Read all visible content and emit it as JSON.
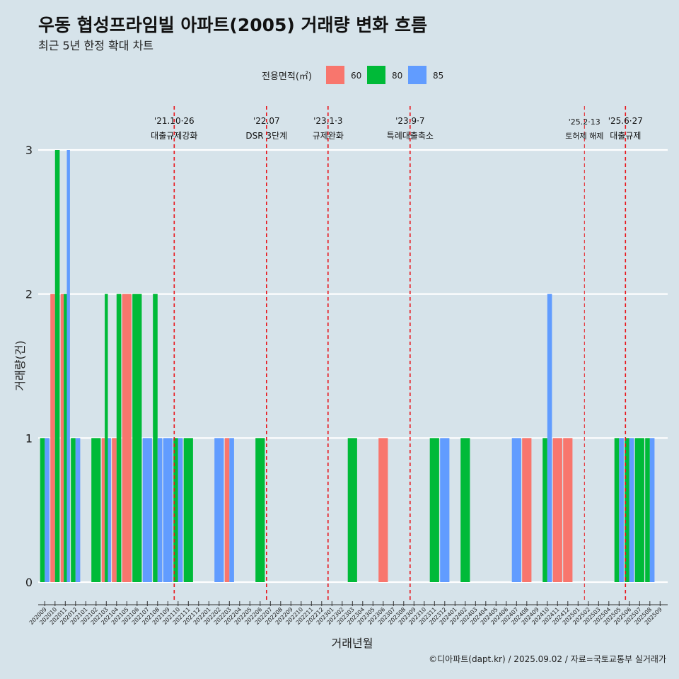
{
  "header": {
    "title": "우동 협성프라임빌 아파트(2005) 거래량 변화 흐름",
    "subtitle": "최근 5년 한정 확대 차트"
  },
  "legend": {
    "title": "전용면적(㎡)",
    "items": [
      {
        "label": "60",
        "color": "#F8766D"
      },
      {
        "label": "80",
        "color": "#00BA38"
      },
      {
        "label": "85",
        "color": "#619CFF"
      }
    ]
  },
  "caption": "©디아파트(dapt.kr) / 2025.09.02 / 자료=국토교통부 실거래가",
  "chart_data": {
    "type": "bar",
    "xlabel": "거래년월",
    "ylabel": "거래량(건)",
    "ylim": [
      0,
      3
    ],
    "yticks": [
      0,
      1,
      2,
      3
    ],
    "grid": true,
    "legend_position": "top",
    "categories": [
      "202009",
      "202010",
      "202011",
      "202012",
      "202101",
      "202102",
      "202103",
      "202104",
      "202105",
      "202106",
      "202107",
      "202108",
      "202109",
      "202110",
      "202111",
      "202112",
      "202201",
      "202202",
      "202203",
      "202204",
      "202205",
      "202206",
      "202207",
      "202208",
      "202209",
      "202210",
      "202211",
      "202212",
      "202301",
      "202302",
      "202303",
      "202304",
      "202305",
      "202306",
      "202307",
      "202308",
      "202309",
      "202310",
      "202311",
      "202312",
      "202401",
      "202402",
      "202403",
      "202404",
      "202405",
      "202406",
      "202407",
      "202408",
      "202409",
      "202410",
      "202411",
      "202412",
      "202501",
      "202502",
      "202503",
      "202504",
      "202505",
      "202506",
      "202507",
      "202508",
      "202509"
    ],
    "bars": [
      {
        "month": "202009",
        "area": "80",
        "value": 1
      },
      {
        "month": "202009",
        "area": "85",
        "value": 1
      },
      {
        "month": "202010",
        "area": "60",
        "value": 2
      },
      {
        "month": "202010",
        "area": "80",
        "value": 3
      },
      {
        "month": "202011",
        "area": "60",
        "value": 2
      },
      {
        "month": "202011",
        "area": "80",
        "value": 2
      },
      {
        "month": "202011",
        "area": "85",
        "value": 3
      },
      {
        "month": "202012",
        "area": "80",
        "value": 1
      },
      {
        "month": "202012",
        "area": "85",
        "value": 1
      },
      {
        "month": "202102",
        "area": "80",
        "value": 1
      },
      {
        "month": "202103",
        "area": "60",
        "value": 1
      },
      {
        "month": "202103",
        "area": "80",
        "value": 2
      },
      {
        "month": "202103",
        "area": "85",
        "value": 1
      },
      {
        "month": "202104",
        "area": "60",
        "value": 1
      },
      {
        "month": "202104",
        "area": "80",
        "value": 2
      },
      {
        "month": "202105",
        "area": "60",
        "value": 2
      },
      {
        "month": "202106",
        "area": "80",
        "value": 2
      },
      {
        "month": "202107",
        "area": "85",
        "value": 1
      },
      {
        "month": "202108",
        "area": "80",
        "value": 2
      },
      {
        "month": "202108",
        "area": "85",
        "value": 1
      },
      {
        "month": "202109",
        "area": "85",
        "value": 1
      },
      {
        "month": "202110",
        "area": "80",
        "value": 1
      },
      {
        "month": "202110",
        "area": "85",
        "value": 1
      },
      {
        "month": "202111",
        "area": "80",
        "value": 1
      },
      {
        "month": "202202",
        "area": "85",
        "value": 1
      },
      {
        "month": "202203",
        "area": "60",
        "value": 1
      },
      {
        "month": "202203",
        "area": "85",
        "value": 1
      },
      {
        "month": "202206",
        "area": "80",
        "value": 1
      },
      {
        "month": "202303",
        "area": "80",
        "value": 1
      },
      {
        "month": "202306",
        "area": "60",
        "value": 1
      },
      {
        "month": "202311",
        "area": "80",
        "value": 1
      },
      {
        "month": "202312",
        "area": "85",
        "value": 1
      },
      {
        "month": "202402",
        "area": "80",
        "value": 1
      },
      {
        "month": "202407",
        "area": "85",
        "value": 1
      },
      {
        "month": "202408",
        "area": "60",
        "value": 1
      },
      {
        "month": "202410",
        "area": "80",
        "value": 1
      },
      {
        "month": "202410",
        "area": "85",
        "value": 2
      },
      {
        "month": "202411",
        "area": "60",
        "value": 1
      },
      {
        "month": "202412",
        "area": "60",
        "value": 1
      },
      {
        "month": "202505",
        "area": "80",
        "value": 1
      },
      {
        "month": "202505",
        "area": "85",
        "value": 1
      },
      {
        "month": "202506",
        "area": "80",
        "value": 1
      },
      {
        "month": "202506",
        "area": "85",
        "value": 1
      },
      {
        "month": "202507",
        "area": "80",
        "value": 1
      },
      {
        "month": "202508",
        "area": "80",
        "value": 1
      },
      {
        "month": "202508",
        "area": "85",
        "value": 1
      }
    ],
    "events": [
      {
        "month": "202110",
        "date": "'21.10·26",
        "label": "대출규제강화"
      },
      {
        "month": "202207",
        "date": "'22.07",
        "label": "DSR 3단계"
      },
      {
        "month": "202301",
        "date": "'23.1·3",
        "label": "규제완화"
      },
      {
        "month": "202309",
        "date": "'23.9·7",
        "label": "특례대출축소"
      },
      {
        "month": "202502",
        "date": "'25.2·13",
        "label": "토허제 해제"
      },
      {
        "month": "202506",
        "date": "'25.6·27",
        "label": "대출규제"
      }
    ]
  }
}
